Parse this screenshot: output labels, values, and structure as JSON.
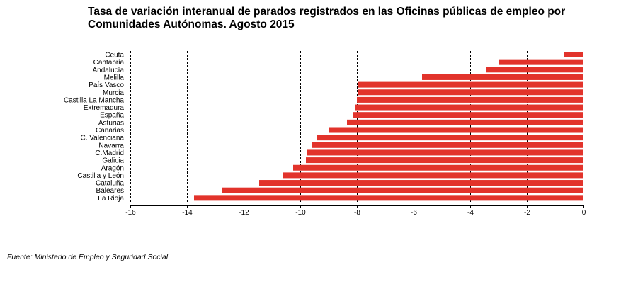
{
  "title_line1": "Tasa de variación interanual de parados registrados en las Oficinas públicas de empleo por",
  "title_line2": "Comunidades Autónomas.  Agosto 2015",
  "source": "Fuente: Ministerio de Empleo y Seguridad Social",
  "chart_data": {
    "type": "bar",
    "orientation": "horizontal",
    "categories": [
      "Ceuta",
      "Cantabria",
      "Andalucía",
      "Melilla",
      "País Vasco",
      "Murcia",
      "Castilla La Mancha",
      "Extremadura",
      "España",
      "Asturias",
      "Canarias",
      "C. Valenciana",
      "Navarra",
      "C.Madrid",
      "Galicia",
      "Aragón",
      "Castilla y León",
      "Cataluña",
      "Baleares",
      "La Rioja"
    ],
    "values": [
      -0.7,
      -3.0,
      -3.45,
      -5.7,
      -7.95,
      -7.95,
      -8.0,
      -8.05,
      -8.15,
      -8.35,
      -9.0,
      -9.4,
      -9.6,
      -9.75,
      -9.8,
      -10.25,
      -10.6,
      -11.45,
      -12.75,
      -13.75
    ],
    "xlim": [
      -16,
      0
    ],
    "xticks": [
      -16,
      -14,
      -12,
      -10,
      -8,
      -6,
      -4,
      -2,
      0
    ],
    "grid": "vertical-dashed",
    "bar_color": "#e2332b",
    "title": "Tasa de variación interanual de parados registrados en las Oficinas públicas de empleo por Comunidades Autónomas.  Agosto 2015"
  }
}
